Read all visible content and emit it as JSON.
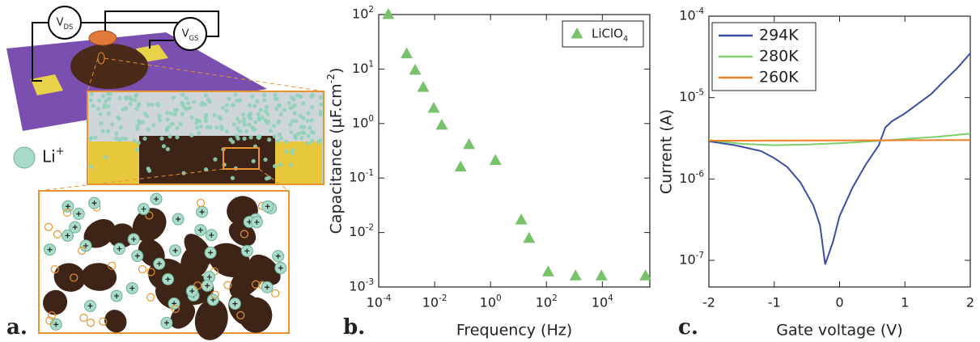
{
  "panel_labels": [
    "a.",
    "b.",
    "c."
  ],
  "illustration": {
    "voltmeters": [
      "V_{DS}",
      "V_{GS}"
    ],
    "ion_label": "Li^{+}"
  },
  "chart_data": [
    {
      "type": "scatter",
      "xlabel": "Frequency (Hz)",
      "ylabel": "Capacitance (µF.cm^{-2})",
      "xscale": "log",
      "yscale": "log",
      "legend": "upper right",
      "xlim": [
        0.0001,
        500000
      ],
      "ylim": [
        0.001,
        100
      ],
      "xticks": [
        {
          "value": 0.0001,
          "label": "10^{-4}"
        },
        {
          "value": 0.01,
          "label": "10^{-2}"
        },
        {
          "value": 1,
          "label": "10^{0}"
        },
        {
          "value": 100,
          "label": "10^{2}"
        },
        {
          "value": 10000,
          "label": "10^{4}"
        }
      ],
      "yticks": [
        {
          "value": 0.001,
          "label": "10^{-3}"
        },
        {
          "value": 0.01,
          "label": "10^{-2}"
        },
        {
          "value": 0.1,
          "label": "10^{-1}"
        },
        {
          "value": 1,
          "label": "10^{0}"
        },
        {
          "value": 10,
          "label": "10^{1}"
        },
        {
          "value": 100,
          "label": "10^{2}"
        }
      ],
      "x": [
        0.00022,
        0.001,
        0.002,
        0.0039,
        0.0093,
        0.018,
        0.085,
        0.17,
        1.5,
        12.5,
        24,
        115,
        1100,
        9300,
        350000
      ],
      "series": [
        {
          "name": "LiClO_{4}",
          "color": "#77c26b",
          "marker": "triangle",
          "values": [
            100,
            19,
            9.5,
            4.6,
            1.9,
            0.93,
            0.16,
            0.41,
            0.21,
            0.017,
            0.0078,
            0.0019,
            0.0016,
            0.0016,
            0.0016
          ]
        }
      ]
    },
    {
      "type": "line",
      "xlabel": "Gate voltage (V)",
      "ylabel": "Current (A)",
      "xscale": "linear",
      "yscale": "log",
      "legend": "upper left",
      "xlim": [
        -2,
        2
      ],
      "ylim": [
        4.7e-08,
        0.0001
      ],
      "xticks": [
        -2,
        -1,
        0,
        1,
        2
      ],
      "yticks": [
        {
          "value": 1e-07,
          "label": "10^{-7}"
        },
        {
          "value": 1e-06,
          "label": "10^{-6}"
        },
        {
          "value": 1e-05,
          "label": "10^{-5}"
        },
        {
          "value": 0.0001,
          "label": "10^{-4}"
        }
      ],
      "series": [
        {
          "name": "294K",
          "color": "#3b4ea3",
          "x": [
            -2,
            -1.6,
            -1.2,
            -1,
            -0.8,
            -0.6,
            -0.4,
            -0.3,
            -0.22,
            -0.1,
            0,
            0.2,
            0.4,
            0.6,
            0.7,
            0.8,
            1,
            1.2,
            1.4,
            1.6,
            1.8,
            2
          ],
          "values": [
            2.9e-06,
            2.6e-06,
            2.2e-06,
            1.8e-06,
            1.4e-06,
            9.1e-07,
            4.7e-07,
            2.7e-07,
            8.9e-08,
            1.7e-07,
            3.5e-07,
            7.9e-07,
            1.5e-06,
            2.6e-06,
            4.3e-06,
            5.1e-06,
            6.4e-06,
            8.4e-06,
            1.1e-05,
            1.6e-05,
            2.3e-05,
            3.5e-05
          ]
        },
        {
          "name": "280K",
          "color": "#7ccf6a",
          "x": [
            -2,
            -1.5,
            -1,
            -0.5,
            0,
            0.5,
            1,
            1.5,
            2
          ],
          "values": [
            3e-06,
            2.7e-06,
            2.6e-06,
            2.65e-06,
            2.75e-06,
            2.9e-06,
            3.1e-06,
            3.3e-06,
            3.6e-06
          ]
        },
        {
          "name": "260K",
          "color": "#f07f2a",
          "x": [
            -2,
            2
          ],
          "values": [
            2.95e-06,
            3e-06
          ]
        }
      ]
    }
  ]
}
